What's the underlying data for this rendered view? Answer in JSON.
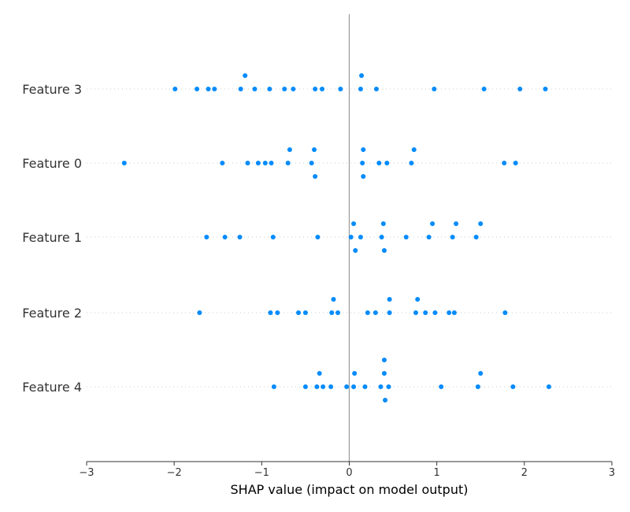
{
  "chart_data": {
    "type": "scatter",
    "subtype": "shap-summary-beeswarm",
    "title": "",
    "xlabel": "SHAP value (impact on model output)",
    "ylabel": "",
    "xlim": [
      -3,
      3
    ],
    "xticks": [
      -3,
      -2,
      -1,
      0,
      1,
      2,
      3
    ],
    "xtick_labels": [
      "−3",
      "−2",
      "−1",
      "0",
      "1",
      "2",
      "3"
    ],
    "grid": false,
    "legend": "none",
    "zero_line": true,
    "colors": {
      "points": "#008bfb",
      "zero_line": "#999999",
      "row_guides": "#cccccc",
      "axis": "#333333"
    },
    "features": [
      {
        "name": "Feature 3",
        "values": [
          -1.99,
          -1.74,
          -1.61,
          -1.54,
          -1.24,
          -1.19,
          -1.08,
          -0.91,
          -0.74,
          -0.64,
          -0.39,
          -0.31,
          -0.1,
          0.13,
          0.14,
          0.31,
          0.97,
          1.54,
          1.95,
          2.24
        ]
      },
      {
        "name": "Feature 0",
        "values": [
          -2.57,
          -1.45,
          -1.16,
          -1.04,
          -0.96,
          -0.89,
          -0.7,
          -0.68,
          -0.43,
          -0.4,
          -0.39,
          0.15,
          0.16,
          0.16,
          0.34,
          0.43,
          0.71,
          0.74,
          1.77,
          1.9
        ]
      },
      {
        "name": "Feature 1",
        "values": [
          -1.63,
          -1.42,
          -1.25,
          -0.87,
          -0.36,
          0.02,
          0.05,
          0.07,
          0.13,
          0.37,
          0.39,
          0.4,
          0.65,
          0.91,
          0.95,
          1.18,
          1.22,
          1.45,
          1.5
        ]
      },
      {
        "name": "Feature 2",
        "values": [
          -1.71,
          -0.9,
          -0.82,
          -0.58,
          -0.5,
          -0.2,
          -0.18,
          -0.13,
          0.21,
          0.3,
          0.46,
          0.46,
          0.76,
          0.78,
          0.87,
          0.98,
          1.14,
          1.2,
          1.78
        ]
      },
      {
        "name": "Feature 4",
        "values": [
          -0.86,
          -0.5,
          -0.37,
          -0.34,
          -0.3,
          -0.21,
          -0.03,
          0.05,
          0.06,
          0.18,
          0.36,
          0.4,
          0.41,
          0.45,
          0.4,
          1.05,
          1.47,
          1.5,
          1.87,
          2.28
        ]
      }
    ]
  }
}
